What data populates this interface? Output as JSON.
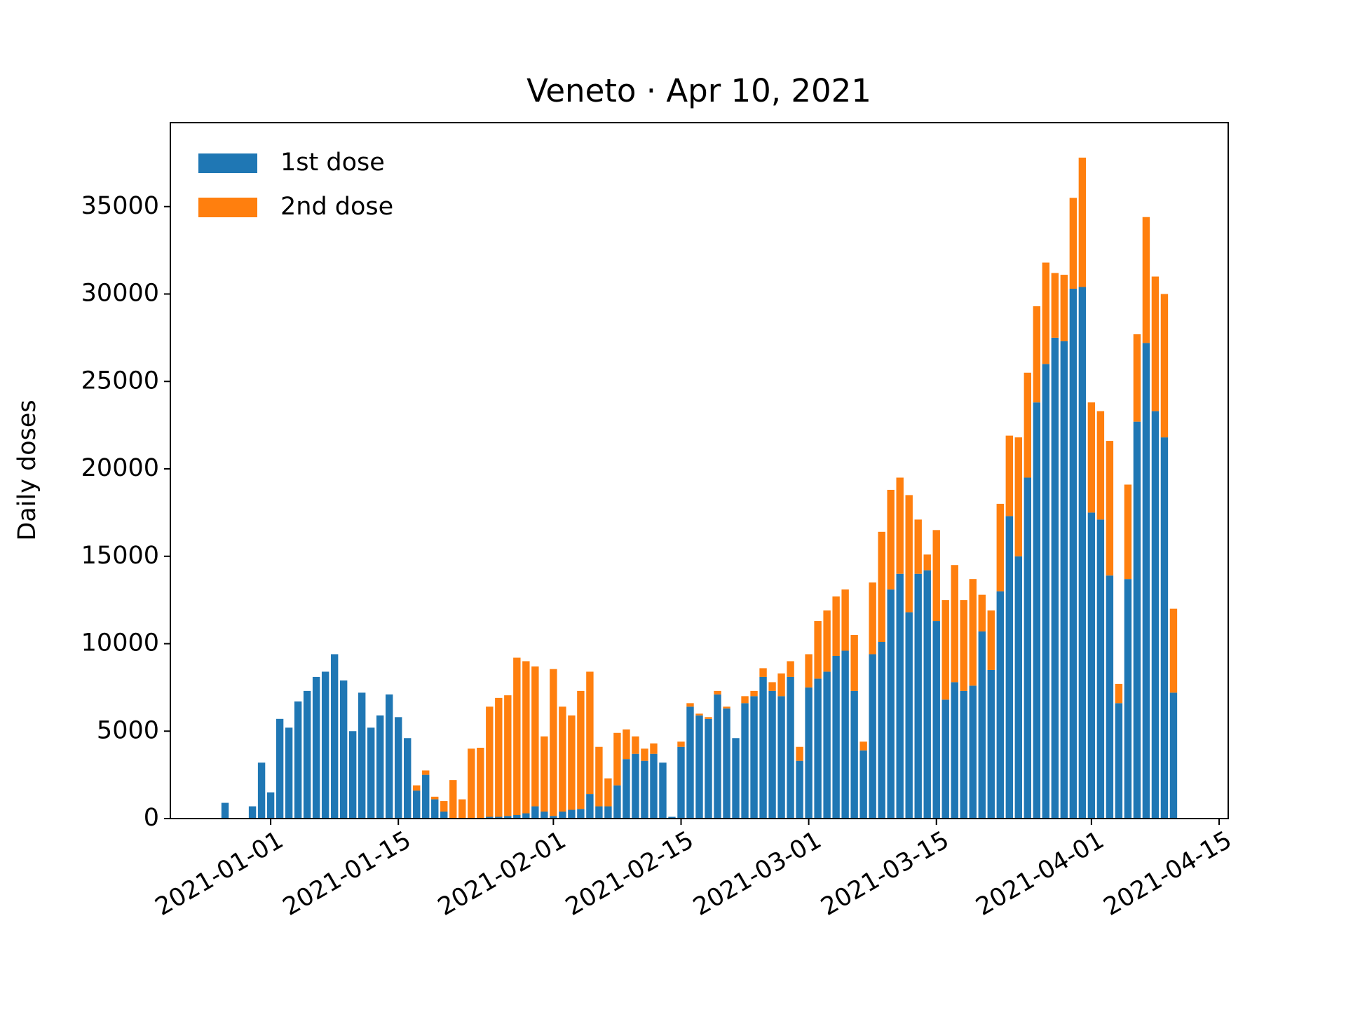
{
  "chart_data": {
    "type": "stacked_bar",
    "title": "Veneto · Apr 10, 2021",
    "ylabel": "Daily doses",
    "x": [
      "2020-12-27",
      "2020-12-28",
      "2020-12-29",
      "2020-12-30",
      "2020-12-31",
      "2021-01-01",
      "2021-01-02",
      "2021-01-03",
      "2021-01-04",
      "2021-01-05",
      "2021-01-06",
      "2021-01-07",
      "2021-01-08",
      "2021-01-09",
      "2021-01-10",
      "2021-01-11",
      "2021-01-12",
      "2021-01-13",
      "2021-01-14",
      "2021-01-15",
      "2021-01-16",
      "2021-01-17",
      "2021-01-18",
      "2021-01-19",
      "2021-01-20",
      "2021-01-21",
      "2021-01-22",
      "2021-01-23",
      "2021-01-24",
      "2021-01-25",
      "2021-01-26",
      "2021-01-27",
      "2021-01-28",
      "2021-01-29",
      "2021-01-30",
      "2021-01-31",
      "2021-02-01",
      "2021-02-02",
      "2021-02-03",
      "2021-02-04",
      "2021-02-05",
      "2021-02-06",
      "2021-02-07",
      "2021-02-08",
      "2021-02-09",
      "2021-02-10",
      "2021-02-11",
      "2021-02-12",
      "2021-02-13",
      "2021-02-14",
      "2021-02-15",
      "2021-02-16",
      "2021-02-17",
      "2021-02-18",
      "2021-02-19",
      "2021-02-20",
      "2021-02-21",
      "2021-02-22",
      "2021-02-23",
      "2021-02-24",
      "2021-02-25",
      "2021-02-26",
      "2021-02-27",
      "2021-02-28",
      "2021-03-01",
      "2021-03-02",
      "2021-03-03",
      "2021-03-04",
      "2021-03-05",
      "2021-03-06",
      "2021-03-07",
      "2021-03-08",
      "2021-03-09",
      "2021-03-10",
      "2021-03-11",
      "2021-03-12",
      "2021-03-13",
      "2021-03-14",
      "2021-03-15",
      "2021-03-16",
      "2021-03-17",
      "2021-03-18",
      "2021-03-19",
      "2021-03-20",
      "2021-03-21",
      "2021-03-22",
      "2021-03-23",
      "2021-03-24",
      "2021-03-25",
      "2021-03-26",
      "2021-03-27",
      "2021-03-28",
      "2021-03-29",
      "2021-03-30",
      "2021-03-31",
      "2021-04-01",
      "2021-04-02",
      "2021-04-03",
      "2021-04-04",
      "2021-04-05",
      "2021-04-06",
      "2021-04-07",
      "2021-04-08",
      "2021-04-09",
      "2021-04-10"
    ],
    "series": [
      {
        "name": "1st dose",
        "color": "#1f77b4",
        "values": [
          900,
          0,
          0,
          700,
          3200,
          1500,
          5700,
          5200,
          6700,
          7300,
          8100,
          8400,
          9400,
          7900,
          5000,
          7200,
          5200,
          5900,
          7100,
          5800,
          4600,
          1600,
          2500,
          1100,
          400,
          0,
          0,
          0,
          0,
          100,
          100,
          150,
          200,
          300,
          700,
          400,
          150,
          400,
          500,
          550,
          1400,
          700,
          700,
          1900,
          3400,
          3700,
          3300,
          3700,
          3200,
          100,
          4100,
          6400,
          5900,
          5700,
          7100,
          6300,
          4600,
          6600,
          7000,
          8100,
          7300,
          7000,
          8100,
          3300,
          7500,
          8000,
          8400,
          9300,
          9600,
          7300,
          3900,
          9400,
          10100,
          13100,
          14000,
          11800,
          14000,
          14200,
          11300,
          6800,
          7800,
          7300,
          7600,
          10700,
          8500,
          13000,
          17300,
          15000,
          19500,
          23800,
          26000,
          27500,
          27300,
          30300,
          30400,
          17500,
          17100,
          13900,
          6600,
          13700,
          22700,
          27200,
          23300,
          21800,
          7200
        ]
      },
      {
        "name": "2nd dose",
        "color": "#ff7f0e",
        "values": [
          0,
          0,
          0,
          0,
          0,
          0,
          0,
          0,
          0,
          0,
          0,
          0,
          0,
          0,
          0,
          0,
          0,
          0,
          0,
          0,
          0,
          300,
          250,
          150,
          600,
          2200,
          1100,
          4000,
          4050,
          6300,
          6800,
          6900,
          9000,
          8700,
          8000,
          4300,
          8400,
          6000,
          5400,
          6750,
          7000,
          3400,
          1600,
          3000,
          1700,
          1000,
          700,
          600,
          0,
          0,
          300,
          200,
          100,
          100,
          200,
          100,
          0,
          400,
          300,
          500,
          500,
          1300,
          900,
          800,
          1900,
          3300,
          3500,
          3400,
          3500,
          3200,
          500,
          4100,
          6300,
          5700,
          5500,
          6700,
          3100,
          900,
          5200,
          5700,
          6700,
          5200,
          6100,
          2100,
          3400,
          5000,
          4600,
          6800,
          6000,
          5500,
          5800,
          3700,
          3800,
          5200,
          7400,
          6300,
          6200,
          7700,
          1100,
          5400,
          5000,
          7200,
          7700,
          8200,
          4800
        ]
      }
    ],
    "xlim": [
      "2020-12-21",
      "2021-04-16"
    ],
    "xticks": [
      "2021-01-01",
      "2021-01-15",
      "2021-02-01",
      "2021-02-15",
      "2021-03-01",
      "2021-03-15",
      "2021-04-01",
      "2021-04-15"
    ],
    "ylim": [
      0,
      39800
    ],
    "yticks": [
      0,
      5000,
      10000,
      15000,
      20000,
      25000,
      30000,
      35000
    ],
    "legend": "upper left",
    "grid": false
  }
}
